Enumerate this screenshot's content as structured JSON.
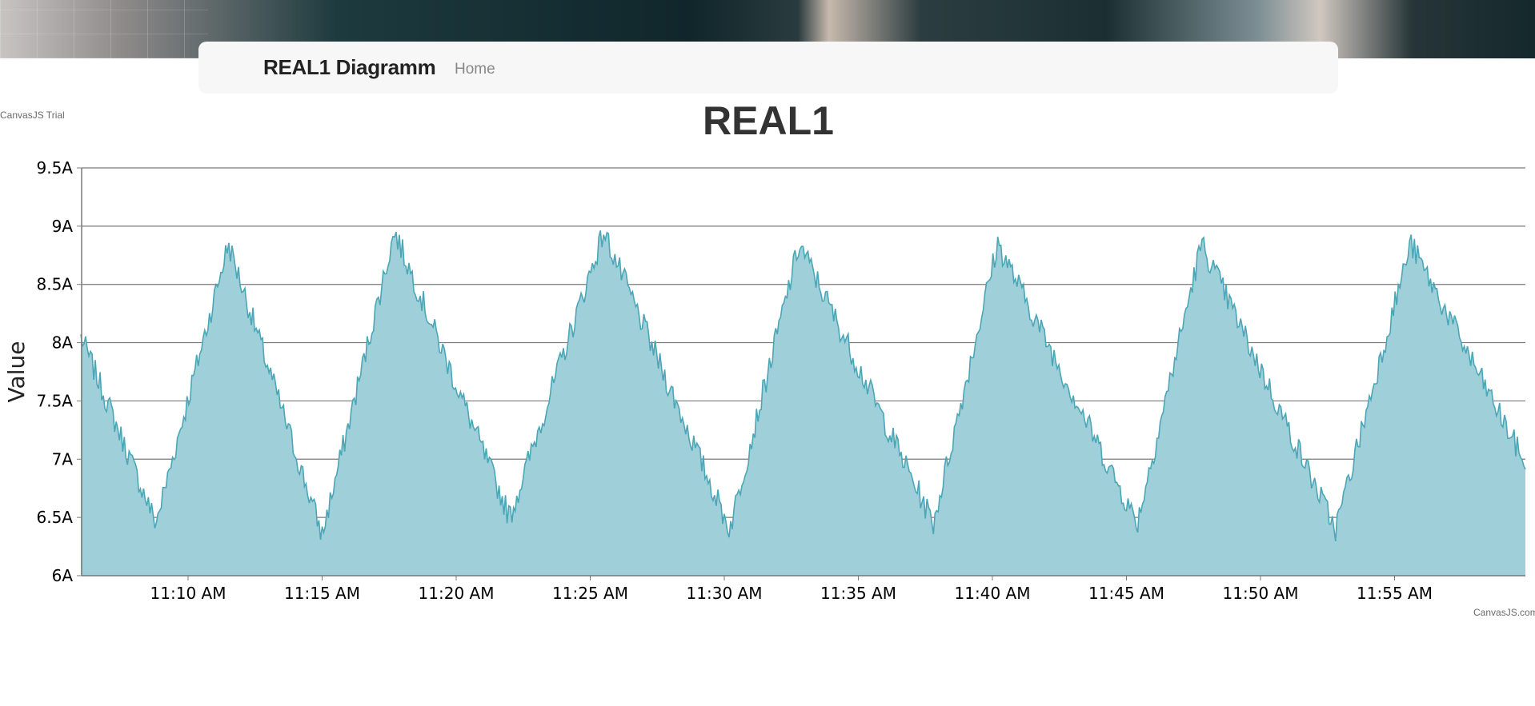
{
  "navbar": {
    "brand": "REAL1 Diagramm",
    "home_link": "Home"
  },
  "watermark": {
    "trial": "CanvasJS Trial",
    "credit": "CanvasJS.com"
  },
  "chart_data": {
    "type": "area",
    "title": "REAL1",
    "ylabel": "Value",
    "xlabel": "",
    "y_unit_suffix": "A",
    "ylim": [
      6,
      9.5
    ],
    "y_ticks": [
      6,
      6.5,
      7,
      7.5,
      8,
      8.5,
      9,
      9.5
    ],
    "y_tick_labels": [
      "6A",
      "6.5A",
      "7A",
      "7.5A",
      "8A",
      "8.5A",
      "9A",
      "9.5A"
    ],
    "xlim": [
      "11:06 AM",
      "11:59 AM"
    ],
    "x_tick_labels": [
      "11:10 AM",
      "11:15 AM",
      "11:20 AM",
      "11:25 AM",
      "11:30 AM",
      "11:35 AM",
      "11:40 AM",
      "11:45 AM",
      "11:50 AM",
      "11:55 AM"
    ],
    "grid": true,
    "legend": "none",
    "colors": {
      "fill": "#9fd0da",
      "line": "#4ba6b6",
      "grid": "#7a7a7a"
    },
    "series": [
      {
        "x": [
          "11:06 AM",
          "11:08.8 AM",
          "11:11.5 AM",
          "11:15.0 AM",
          "11:17.7 AM",
          "11:22.0 AM",
          "11:25.5 AM",
          "11:30.2 AM",
          "11:32.8 AM",
          "11:37.8 AM",
          "11:40.2 AM",
          "11:45.4 AM",
          "11:47.8 AM",
          "11:52.8 AM",
          "11:55.6 AM",
          "11:59.9 AM"
        ],
        "values": [
          8.05,
          6.45,
          8.85,
          6.35,
          8.95,
          6.5,
          8.95,
          6.4,
          8.85,
          6.45,
          8.85,
          6.45,
          8.85,
          6.4,
          8.85,
          6.95
        ]
      }
    ]
  }
}
